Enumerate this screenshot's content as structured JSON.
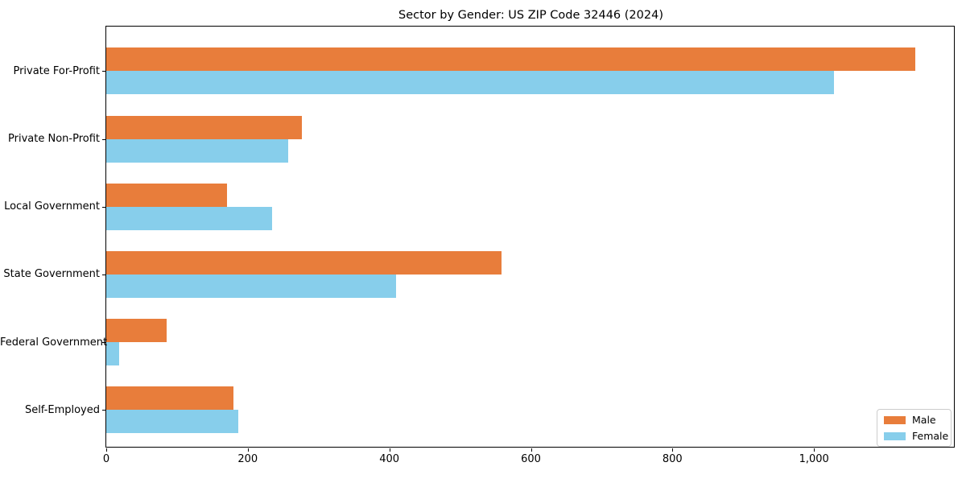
{
  "chart_data": {
    "type": "bar",
    "orientation": "horizontal",
    "title": "Sector by Gender: US ZIP Code 32446 (2024)",
    "categories": [
      "Private For-Profit",
      "Private Non-Profit",
      "Local Government",
      "State Government",
      "Federal Government",
      "Self-Employed"
    ],
    "series": [
      {
        "name": "Male",
        "color": "#E87D3B",
        "values": [
          1143,
          276,
          170,
          558,
          85,
          180
        ]
      },
      {
        "name": "Female",
        "color": "#87CEEB",
        "values": [
          1028,
          257,
          234,
          409,
          18,
          187
        ]
      }
    ],
    "xlabel": "",
    "ylabel": "",
    "xlim": [
      0,
      1200
    ],
    "xticks": {
      "values": [
        0,
        200,
        400,
        600,
        800,
        1000
      ],
      "labels": [
        "0",
        "200",
        "400",
        "600",
        "800",
        "1,000"
      ]
    },
    "grid": false,
    "legend": {
      "position": "lower right",
      "entries": [
        "Male",
        "Female"
      ]
    },
    "bar_height_fraction": 0.35
  }
}
